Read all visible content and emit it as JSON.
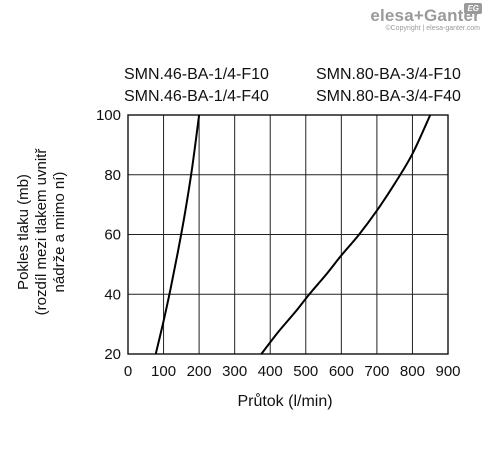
{
  "brand": {
    "logo_left": "elesa",
    "logo_plus": "+",
    "logo_right": "Ganter",
    "copyright": "©Copyright | elesa-ganter.com",
    "badge": "EG"
  },
  "chart_data": {
    "type": "line",
    "xlabel": "Průtok (l/min)",
    "ylabel": [
      "Pokles tlaku (mb)",
      "(rozdíl mezi tlakem uvnitř",
      "nádrže a mimo ní)"
    ],
    "xlim": [
      0,
      900
    ],
    "ylim": [
      20,
      100
    ],
    "x_ticks": [
      0,
      100,
      200,
      300,
      400,
      500,
      600,
      700,
      800,
      900
    ],
    "y_ticks": [
      20,
      40,
      60,
      80,
      100
    ],
    "grid": true,
    "series": [
      {
        "name": "SMN.46-BA-1/4-F10 / SMN.46-BA-1/4-F40",
        "legend_lines": [
          "SMN.46-BA-1/4-F10",
          "SMN.46-BA-1/4-F40"
        ],
        "x": [
          78,
          100,
          120,
          140,
          160,
          180,
          200
        ],
        "y": [
          20,
          31,
          42,
          54,
          67,
          82,
          100
        ]
      },
      {
        "name": "SMN.80-BA-3/4-F10 / SMN.80-BA-3/4-F40",
        "legend_lines": [
          "SMN.80-BA-3/4-F10",
          "SMN.80-BA-3/4-F40"
        ],
        "x": [
          375,
          420,
          470,
          510,
          560,
          600,
          650,
          700,
          750,
          800,
          850
        ],
        "y": [
          20,
          27,
          34,
          40,
          47,
          53,
          60,
          68,
          77,
          87,
          100
        ]
      }
    ]
  }
}
